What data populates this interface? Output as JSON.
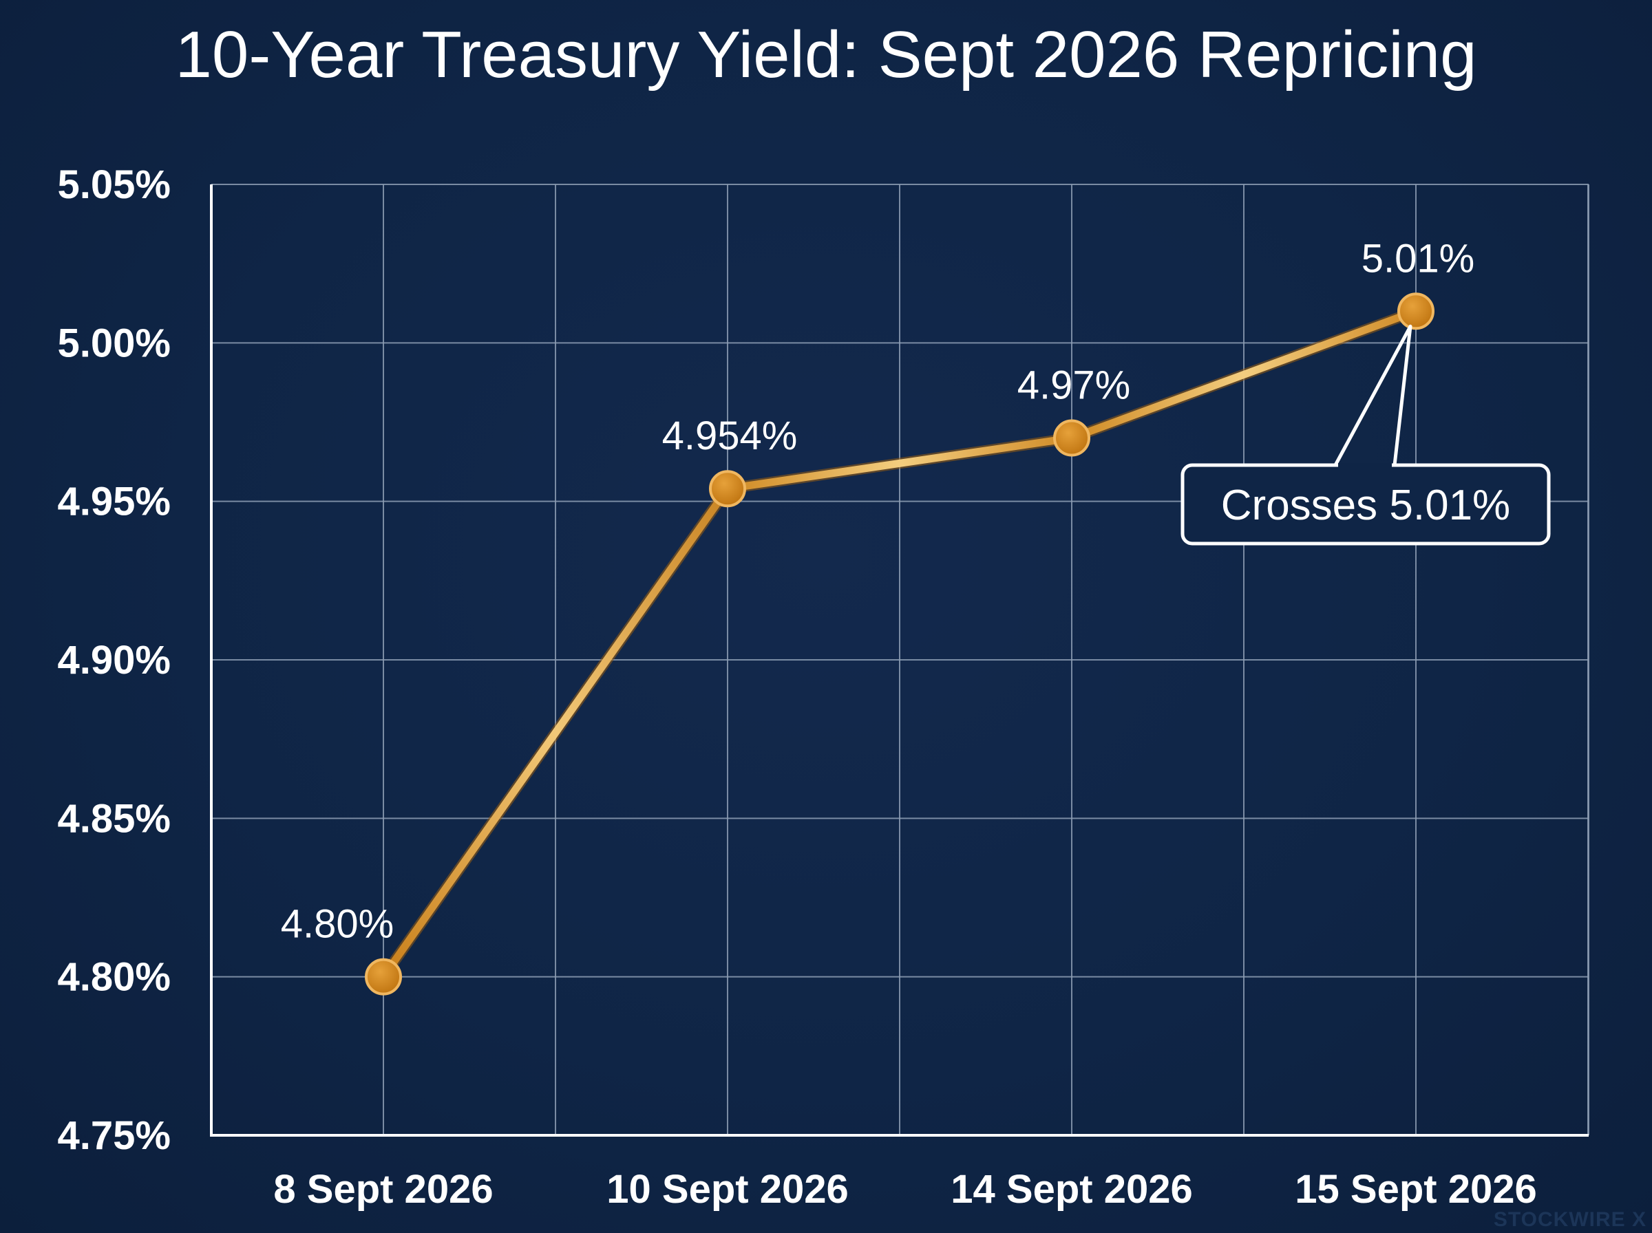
{
  "chart_data": {
    "type": "line",
    "title": "10-Year Treasury Yield: Sept 2026 Repricing",
    "xlabel": "",
    "ylabel": "",
    "categories": [
      "8 Sept 2026",
      "10 Sept 2026",
      "14 Sept 2026",
      "15 Sept 2026"
    ],
    "series": [
      {
        "values": [
          4.8,
          4.954,
          4.97,
          5.01
        ],
        "data_labels": [
          "4.80%",
          "4.954%",
          "4.97%",
          "5.01%"
        ]
      }
    ],
    "ylim": [
      4.75,
      5.05
    ],
    "yticks": [
      4.75,
      4.8,
      4.85,
      4.9,
      4.95,
      5.0,
      5.05
    ],
    "ytick_labels": [
      "4.75%",
      "4.80%",
      "4.85%",
      "4.90%",
      "4.95%",
      "5.00%",
      "5.05%"
    ],
    "grid": true,
    "annotation": {
      "text": "Crosses 5.01%",
      "target_index": 3
    },
    "colors": {
      "background": "#0f2546",
      "line": "#d9962f",
      "line_highlight": "#f2c878",
      "marker": "#d48a1e",
      "grid": "#8d9db4",
      "axis": "#ffffff",
      "text": "#ffffff"
    }
  },
  "watermark": "STOCKWIRE X"
}
